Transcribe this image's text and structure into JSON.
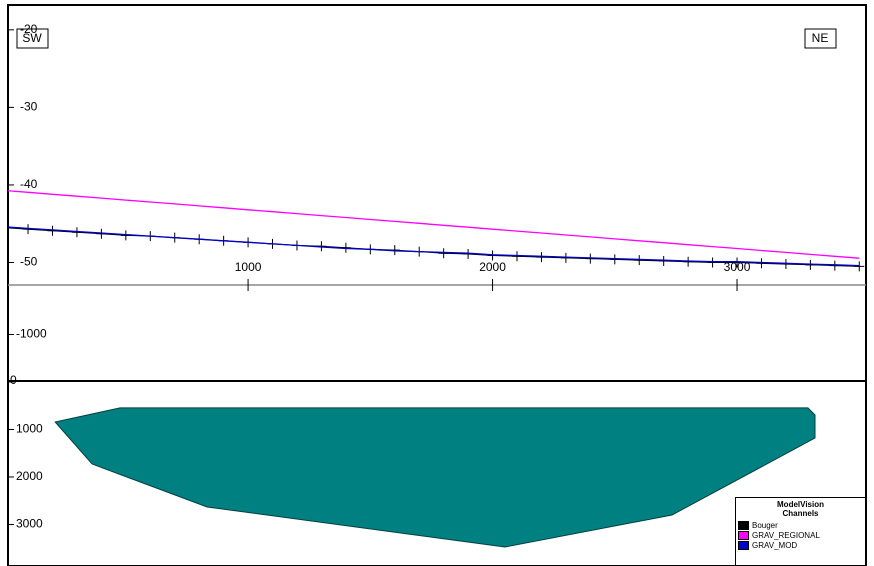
{
  "chart_data": [
    {
      "type": "line",
      "annotations": [
        "SW",
        "NE"
      ],
      "x": [
        0,
        100,
        200,
        300,
        400,
        500,
        600,
        700,
        800,
        900,
        1000,
        1100,
        1200,
        1300,
        1400,
        1500,
        1600,
        1700,
        1800,
        1900,
        2000,
        2100,
        2200,
        2300,
        2400,
        2500,
        2600,
        2700,
        2800,
        2900,
        3000,
        3100,
        3200,
        3300,
        3400,
        3500
      ],
      "series": [
        {
          "name": "Bouger",
          "color": "#000000",
          "marker": "cross",
          "values": [
            -45.5,
            -45.7,
            -45.9,
            -46.1,
            -46.3,
            -46.5,
            -46.6,
            -46.8,
            -47.0,
            -47.2,
            -47.4,
            -47.6,
            -47.8,
            -47.9,
            -48.1,
            -48.3,
            -48.4,
            -48.6,
            -48.8,
            -48.9,
            -49.1,
            -49.2,
            -49.3,
            -49.4,
            -49.5,
            -49.6,
            -49.7,
            -49.8,
            -49.9,
            -50.0,
            -50.0,
            -50.1,
            -50.2,
            -50.3,
            -50.4,
            -50.5
          ]
        },
        {
          "name": "GRAV_REGIONAL",
          "color": "#ff00ff",
          "marker": "none",
          "values": [
            -40.7,
            -40.95,
            -41.2,
            -41.45,
            -41.7,
            -41.95,
            -42.2,
            -42.45,
            -42.7,
            -42.95,
            -43.2,
            -43.45,
            -43.7,
            -43.95,
            -44.2,
            -44.45,
            -44.7,
            -44.95,
            -45.2,
            -45.45,
            -45.7,
            -45.95,
            -46.2,
            -46.45,
            -46.7,
            -46.95,
            -47.2,
            -47.45,
            -47.7,
            -47.95,
            -48.2,
            -48.45,
            -48.7,
            -48.95,
            -49.2,
            -49.45
          ]
        },
        {
          "name": "GRAV_MOD",
          "color": "#0000c8",
          "marker": "none",
          "values": [
            -45.4,
            -45.6,
            -45.8,
            -46.0,
            -46.2,
            -46.4,
            -46.6,
            -46.8,
            -47.0,
            -47.2,
            -47.4,
            -47.6,
            -47.8,
            -48.0,
            -48.2,
            -48.3,
            -48.5,
            -48.6,
            -48.7,
            -48.8,
            -49.0,
            -49.1,
            -49.2,
            -49.3,
            -49.4,
            -49.5,
            -49.6,
            -49.7,
            -49.8,
            -49.9,
            -49.9,
            -50.0,
            -50.1,
            -50.2,
            -50.3,
            -50.4
          ]
        }
      ],
      "xlim": [
        18,
        3503
      ],
      "xticks": [
        1000,
        2000,
        3000
      ],
      "ylim": [
        -52.9,
        -16.8
      ],
      "yticks": [
        -20,
        -30,
        -40,
        -50
      ],
      "legend": {
        "title": "ModelVision Channels",
        "position": "lower right"
      }
    },
    {
      "type": "polygon",
      "color": "#008080",
      "x": [
        211,
        476,
        3290,
        3319,
        3319,
        2734,
        2051,
        833,
        362
      ],
      "y": [
        842,
        547,
        547,
        695,
        1179,
        2800,
        3474,
        2632,
        1726
      ],
      "xlim": [
        18,
        3503
      ],
      "ylim": [
        3874,
        -2020
      ],
      "yticks": [
        -1000,
        0,
        1000,
        2000,
        3000
      ]
    }
  ]
}
